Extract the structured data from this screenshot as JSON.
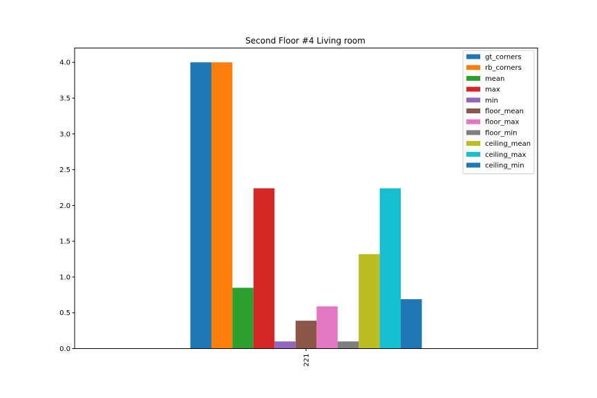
{
  "chart_data": {
    "type": "bar",
    "title": "Second Floor #4 Living room",
    "xlabel": "",
    "ylabel": "",
    "categories": [
      "221"
    ],
    "ylim": [
      0,
      4.2
    ],
    "yticks": [
      "0.0",
      "0.5",
      "1.0",
      "1.5",
      "2.0",
      "2.5",
      "3.0",
      "3.5",
      "4.0"
    ],
    "grid": false,
    "legend_position": "top-right",
    "series": [
      {
        "name": "gt_corners",
        "values": [
          4.0
        ],
        "color": "#1f77b4"
      },
      {
        "name": "rb_corners",
        "values": [
          4.0
        ],
        "color": "#ff7f0e"
      },
      {
        "name": "mean",
        "values": [
          0.85
        ],
        "color": "#2ca02c"
      },
      {
        "name": "max",
        "values": [
          2.24
        ],
        "color": "#d62728"
      },
      {
        "name": "min",
        "values": [
          0.1
        ],
        "color": "#9467bd"
      },
      {
        "name": "floor_mean",
        "values": [
          0.39
        ],
        "color": "#8c564b"
      },
      {
        "name": "floor_max",
        "values": [
          0.59
        ],
        "color": "#e377c2"
      },
      {
        "name": "floor_min",
        "values": [
          0.1
        ],
        "color": "#7f7f7f"
      },
      {
        "name": "ceiling_mean",
        "values": [
          1.32
        ],
        "color": "#bcbd22"
      },
      {
        "name": "ceiling_max",
        "values": [
          2.24
        ],
        "color": "#17becf"
      },
      {
        "name": "ceiling_min",
        "values": [
          0.69
        ],
        "color": "#1f77b4"
      }
    ]
  }
}
